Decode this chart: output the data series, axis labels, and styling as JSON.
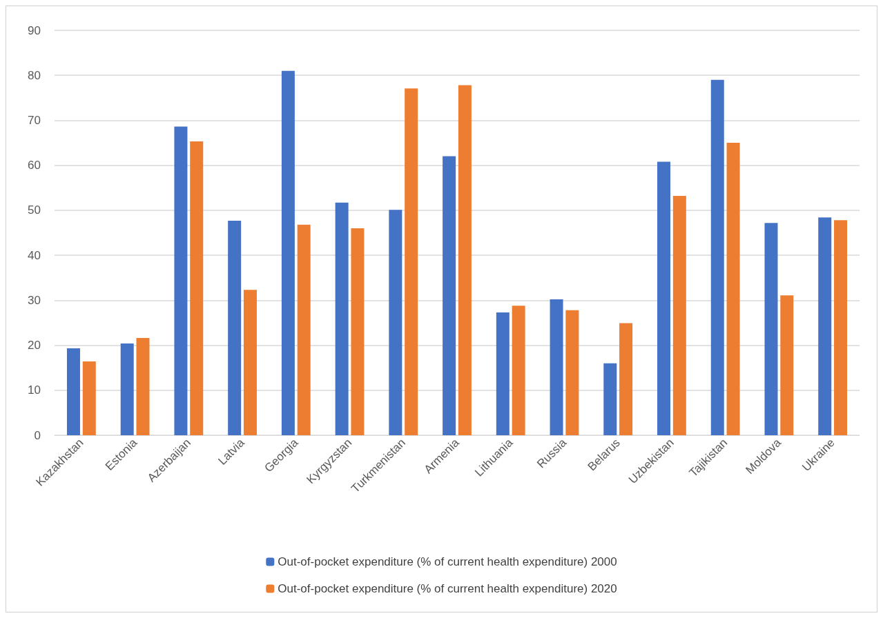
{
  "chart_data": {
    "type": "bar",
    "categories": [
      "Kazakhstan",
      "Estonia",
      "Azerbaijan",
      "Latvia",
      "Georgia",
      "Kyrgyzstan",
      "Turkmenistan",
      "Armenia",
      "Lithuania",
      "Russia",
      "Belarus",
      "Uzbekistan",
      "Tajikistan",
      "Moldova",
      "Ukraine"
    ],
    "series": [
      {
        "name": "Out-of-pocket expenditure (% of current health expenditure) 2000",
        "color": "#4472c4",
        "values": [
          19.3,
          20.4,
          68.6,
          47.7,
          81.0,
          51.7,
          50.1,
          62.0,
          27.3,
          30.2,
          16.0,
          60.8,
          79.0,
          47.2,
          48.4
        ]
      },
      {
        "name": "Out-of-pocket expenditure (% of current health expenditure) 2020",
        "color": "#ed7d31",
        "values": [
          16.4,
          21.6,
          65.3,
          32.3,
          46.8,
          46.0,
          77.1,
          77.8,
          28.8,
          27.8,
          24.9,
          53.2,
          65.0,
          31.1,
          47.8
        ]
      }
    ],
    "ylim": [
      0,
      90
    ],
    "yticks": [
      0,
      10,
      20,
      30,
      40,
      50,
      60,
      70,
      80,
      90
    ],
    "grid": "y",
    "legend": "bottom"
  }
}
